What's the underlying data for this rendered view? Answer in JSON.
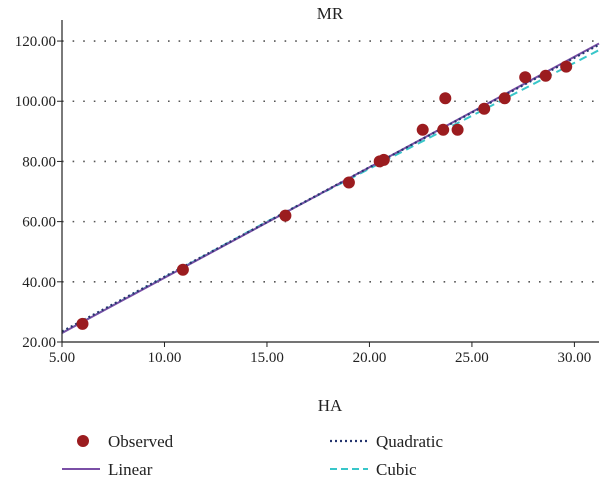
{
  "chart_data": {
    "type": "scatter",
    "ylabel": "MR",
    "xlabel": "HA",
    "xlim": [
      5,
      31.2
    ],
    "ylim": [
      20,
      125
    ],
    "x_ticks": [
      "5.00",
      "10.00",
      "15.00",
      "20.00",
      "25.00",
      "30.00"
    ],
    "y_ticks": [
      "20.00",
      "40.00",
      "60.00",
      "80.00",
      "100.00",
      "120.00"
    ],
    "grid": "horizontal-dotted",
    "legend_position": "bottom",
    "observed": {
      "name": "Observed",
      "color": "#9b1c1f",
      "points": [
        {
          "x": 6.0,
          "y": 26.0
        },
        {
          "x": 10.9,
          "y": 44.0
        },
        {
          "x": 15.9,
          "y": 62.0
        },
        {
          "x": 19.0,
          "y": 73.0
        },
        {
          "x": 20.5,
          "y": 80.0
        },
        {
          "x": 20.7,
          "y": 80.5
        },
        {
          "x": 22.6,
          "y": 90.5
        },
        {
          "x": 23.6,
          "y": 90.5
        },
        {
          "x": 23.7,
          "y": 101.0
        },
        {
          "x": 24.3,
          "y": 90.5
        },
        {
          "x": 25.6,
          "y": 97.5
        },
        {
          "x": 26.6,
          "y": 101.0
        },
        {
          "x": 27.6,
          "y": 108.0
        },
        {
          "x": 28.6,
          "y": 108.5
        },
        {
          "x": 29.6,
          "y": 111.5
        }
      ]
    },
    "fits": [
      {
        "name": "Linear",
        "color": "#7a4fa6",
        "style": "solid",
        "x": [
          5,
          31.2
        ],
        "y": [
          23.0,
          119.2
        ]
      },
      {
        "name": "Quadratic",
        "color": "#24356e",
        "style": "dotted",
        "x": [
          5,
          31.2
        ],
        "y": [
          23.5,
          118.8
        ]
      },
      {
        "name": "Cubic",
        "color": "#38c6c9",
        "style": "dashed",
        "x": [
          5,
          15,
          31.2
        ],
        "y": [
          23.0,
          60.0,
          117.0
        ]
      }
    ]
  }
}
